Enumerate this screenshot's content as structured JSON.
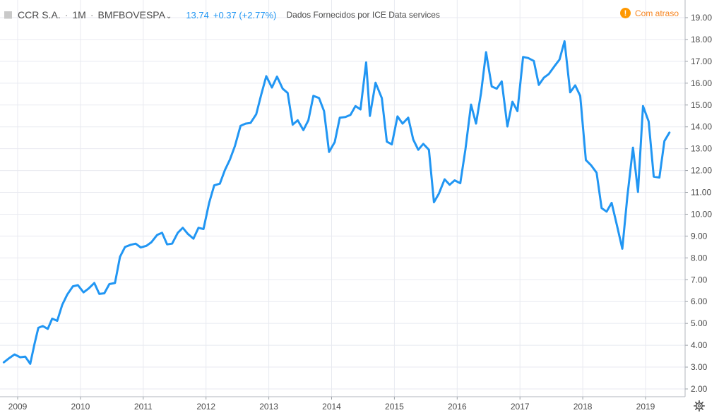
{
  "header": {
    "symbol": "CCR S.A.",
    "separator": "·",
    "interval": "1M",
    "exchange": "BMFBOVESPA",
    "price": "13.74",
    "change": "+0.37 (+2.77%)",
    "source": "Dados Fornecidos por ICE Data services"
  },
  "status": {
    "delay_label": "Com atraso",
    "icon": "warning-icon"
  },
  "colors": {
    "line": "#2196f3",
    "grid": "#e8eaf0",
    "axis_text": "#4a4a4a",
    "accent_orange": "#ff9800"
  },
  "chart_data": {
    "type": "line",
    "title": "",
    "xlabel": "",
    "ylabel": "",
    "ylim": [
      1.6,
      19.5
    ],
    "xlim": [
      2008.78,
      2019.67
    ],
    "grid": true,
    "y_ticks": [
      "2.00",
      "3.00",
      "4.00",
      "5.00",
      "6.00",
      "7.00",
      "8.00",
      "9.00",
      "10.00",
      "11.00",
      "12.00",
      "13.00",
      "14.00",
      "15.00",
      "16.00",
      "17.00",
      "18.00",
      "19.00"
    ],
    "x_ticks": [
      "2009",
      "2010",
      "2011",
      "2012",
      "2013",
      "2014",
      "2015",
      "2016",
      "2017",
      "2018",
      "2019"
    ],
    "series": [
      {
        "values": [
          [
            2008.78,
            3.22
          ],
          [
            2008.87,
            3.42
          ],
          [
            2008.95,
            3.58
          ],
          [
            2009.04,
            3.45
          ],
          [
            2009.12,
            3.48
          ],
          [
            2009.2,
            3.15
          ],
          [
            2009.27,
            4.08
          ],
          [
            2009.33,
            4.8
          ],
          [
            2009.4,
            4.88
          ],
          [
            2009.48,
            4.75
          ],
          [
            2009.55,
            5.22
          ],
          [
            2009.63,
            5.12
          ],
          [
            2009.71,
            5.85
          ],
          [
            2009.79,
            6.32
          ],
          [
            2009.88,
            6.7
          ],
          [
            2009.96,
            6.75
          ],
          [
            2010.05,
            6.42
          ],
          [
            2010.13,
            6.6
          ],
          [
            2010.22,
            6.85
          ],
          [
            2010.3,
            6.35
          ],
          [
            2010.38,
            6.38
          ],
          [
            2010.46,
            6.8
          ],
          [
            2010.55,
            6.85
          ],
          [
            2010.63,
            8.05
          ],
          [
            2010.71,
            8.5
          ],
          [
            2010.8,
            8.6
          ],
          [
            2010.88,
            8.65
          ],
          [
            2010.96,
            8.48
          ],
          [
            2011.05,
            8.55
          ],
          [
            2011.13,
            8.72
          ],
          [
            2011.22,
            9.05
          ],
          [
            2011.3,
            9.15
          ],
          [
            2011.38,
            8.62
          ],
          [
            2011.46,
            8.65
          ],
          [
            2011.55,
            9.15
          ],
          [
            2011.63,
            9.38
          ],
          [
            2011.71,
            9.1
          ],
          [
            2011.8,
            8.88
          ],
          [
            2011.88,
            9.38
          ],
          [
            2011.96,
            9.32
          ],
          [
            2012.05,
            10.52
          ],
          [
            2012.13,
            11.32
          ],
          [
            2012.22,
            11.4
          ],
          [
            2012.3,
            12.02
          ],
          [
            2012.38,
            12.5
          ],
          [
            2012.46,
            13.12
          ],
          [
            2012.55,
            14.05
          ],
          [
            2012.63,
            14.15
          ],
          [
            2012.71,
            14.18
          ],
          [
            2012.8,
            14.58
          ],
          [
            2012.88,
            15.48
          ],
          [
            2012.96,
            16.32
          ],
          [
            2013.05,
            15.8
          ],
          [
            2013.13,
            16.3
          ],
          [
            2013.22,
            15.75
          ],
          [
            2013.3,
            15.55
          ],
          [
            2013.38,
            14.1
          ],
          [
            2013.46,
            14.3
          ],
          [
            2013.55,
            13.85
          ],
          [
            2013.63,
            14.3
          ],
          [
            2013.71,
            15.42
          ],
          [
            2013.8,
            15.32
          ],
          [
            2013.88,
            14.72
          ],
          [
            2013.96,
            12.85
          ],
          [
            2014.05,
            13.3
          ],
          [
            2014.13,
            14.42
          ],
          [
            2014.22,
            14.45
          ],
          [
            2014.3,
            14.55
          ],
          [
            2014.38,
            14.95
          ],
          [
            2014.46,
            14.8
          ],
          [
            2014.55,
            16.95
          ],
          [
            2014.61,
            14.5
          ],
          [
            2014.7,
            16.02
          ],
          [
            2014.8,
            15.32
          ],
          [
            2014.88,
            13.32
          ],
          [
            2014.96,
            13.2
          ],
          [
            2015.05,
            14.48
          ],
          [
            2015.13,
            14.15
          ],
          [
            2015.22,
            14.42
          ],
          [
            2015.3,
            13.42
          ],
          [
            2015.38,
            12.95
          ],
          [
            2015.46,
            13.22
          ],
          [
            2015.55,
            12.95
          ],
          [
            2015.63,
            10.55
          ],
          [
            2015.71,
            10.95
          ],
          [
            2015.8,
            11.6
          ],
          [
            2015.88,
            11.35
          ],
          [
            2015.96,
            11.55
          ],
          [
            2016.05,
            11.42
          ],
          [
            2016.13,
            12.95
          ],
          [
            2016.22,
            15.02
          ],
          [
            2016.3,
            14.15
          ],
          [
            2016.38,
            15.55
          ],
          [
            2016.46,
            17.42
          ],
          [
            2016.55,
            15.85
          ],
          [
            2016.63,
            15.75
          ],
          [
            2016.71,
            16.08
          ],
          [
            2016.8,
            14.02
          ],
          [
            2016.88,
            15.15
          ],
          [
            2016.96,
            14.72
          ],
          [
            2017.05,
            17.2
          ],
          [
            2017.13,
            17.15
          ],
          [
            2017.22,
            17.02
          ],
          [
            2017.3,
            15.92
          ],
          [
            2017.38,
            16.25
          ],
          [
            2017.46,
            16.42
          ],
          [
            2017.55,
            16.78
          ],
          [
            2017.63,
            17.08
          ],
          [
            2017.71,
            17.92
          ],
          [
            2017.8,
            15.58
          ],
          [
            2017.88,
            15.9
          ],
          [
            2017.96,
            15.42
          ],
          [
            2018.05,
            12.48
          ],
          [
            2018.13,
            12.25
          ],
          [
            2018.22,
            11.9
          ],
          [
            2018.3,
            10.28
          ],
          [
            2018.38,
            10.12
          ],
          [
            2018.46,
            10.52
          ],
          [
            2018.55,
            9.42
          ],
          [
            2018.63,
            8.42
          ],
          [
            2018.71,
            10.8
          ],
          [
            2018.8,
            13.05
          ],
          [
            2018.88,
            11.02
          ],
          [
            2018.96,
            14.95
          ],
          [
            2019.05,
            14.25
          ],
          [
            2019.13,
            11.72
          ],
          [
            2019.22,
            11.68
          ],
          [
            2019.3,
            13.35
          ],
          [
            2019.38,
            13.74
          ]
        ]
      }
    ]
  }
}
